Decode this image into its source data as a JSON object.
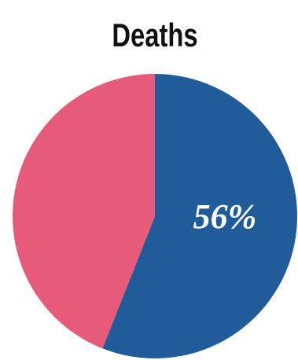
{
  "chart_data": {
    "type": "pie",
    "title": "Deaths",
    "values": [
      56,
      44
    ],
    "value_labels": [
      "56%",
      null
    ],
    "colors": [
      "#1f5c99",
      "#e85a7a"
    ]
  }
}
